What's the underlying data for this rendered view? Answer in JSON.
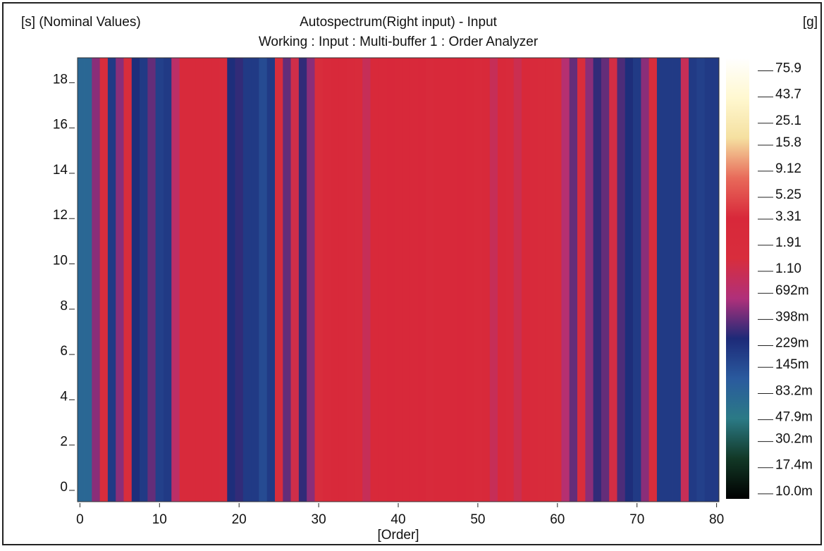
{
  "chart_data": {
    "type": "heatmap",
    "title": "Autospectrum(Right input) - Input",
    "subtitle": "Working : Input : Multi-buffer 1 : Order Analyzer",
    "y_label": "[s] (Nominal Values)",
    "x_label": "[Order]",
    "z_label": "[g]",
    "x": [
      0,
      1,
      2,
      3,
      4,
      5,
      6,
      7,
      8,
      9,
      10,
      11,
      12,
      13,
      14,
      15,
      16,
      17,
      18,
      19,
      20,
      21,
      22,
      23,
      24,
      25,
      26,
      27,
      28,
      29,
      30,
      31,
      32,
      33,
      34,
      35,
      36,
      37,
      38,
      39,
      40,
      41,
      42,
      43,
      44,
      45,
      46,
      47,
      48,
      49,
      50,
      51,
      52,
      53,
      54,
      55,
      56,
      57,
      58,
      59,
      60,
      61,
      62,
      63,
      64,
      65,
      66,
      67,
      68,
      69,
      70,
      71,
      72,
      73,
      74,
      75,
      76,
      77,
      78,
      79,
      80
    ],
    "values": [
      0.08,
      0.08,
      0.5,
      1.5,
      0.2,
      0.5,
      1.5,
      0.25,
      0.2,
      0.4,
      0.18,
      0.2,
      0.8,
      2.5,
      2.5,
      2.5,
      2.5,
      2.5,
      2.0,
      0.25,
      0.3,
      0.2,
      0.2,
      0.15,
      0.2,
      1.5,
      0.4,
      1.2,
      0.3,
      0.5,
      1.5,
      2.5,
      2.8,
      3.0,
      2.5,
      2.2,
      1.0,
      2.8,
      3.0,
      3.3,
      3.0,
      2.8,
      3.0,
      3.2,
      2.5,
      3.0,
      2.8,
      3.0,
      3.3,
      3.0,
      2.5,
      2.8,
      1.0,
      3.0,
      2.5,
      1.1,
      2.8,
      2.5,
      2.2,
      2.0,
      1.8,
      0.7,
      0.4,
      1.5,
      0.5,
      0.3,
      0.4,
      1.3,
      0.35,
      0.25,
      0.2,
      0.5,
      1.5,
      0.2,
      0.2,
      0.2,
      1.0,
      0.2,
      0.18,
      0.2,
      0.2
    ],
    "xlim": [
      -0.3,
      80.3
    ],
    "xticks": [
      0,
      10,
      20,
      30,
      40,
      50,
      60,
      70,
      80
    ],
    "ylim": [
      -0.5,
      19.1
    ],
    "yticks": [
      0,
      2,
      4,
      6,
      8,
      10,
      12,
      14,
      16,
      18
    ],
    "zlim": [
      0.009,
      100
    ],
    "zscale": "log",
    "zticks": [
      75.9,
      43.7,
      25.1,
      15.8,
      9.12,
      5.25,
      3.31,
      1.91,
      {
        "value": 1.1,
        "label": "1.10"
      },
      {
        "value": 0.692,
        "label": "692m"
      },
      {
        "value": 0.398,
        "label": "398m"
      },
      {
        "value": 0.229,
        "label": "229m"
      },
      {
        "value": 0.145,
        "label": "145m"
      },
      {
        "value": 0.0832,
        "label": "83.2m"
      },
      {
        "value": 0.0479,
        "label": "47.9m"
      },
      {
        "value": 0.0302,
        "label": "30.2m"
      },
      {
        "value": 0.0174,
        "label": "17.4m"
      },
      {
        "value": 0.01,
        "label": "10.0m"
      }
    ],
    "colormap": [
      "#000000",
      "#123826",
      "#2b7a86",
      "#2a5a9e",
      "#1d2a78",
      "#b0307a",
      "#d82d3c",
      "#d8283a",
      "#e86a5a",
      "#f5e0a0",
      "#fff8d0",
      "#ffffff"
    ]
  }
}
